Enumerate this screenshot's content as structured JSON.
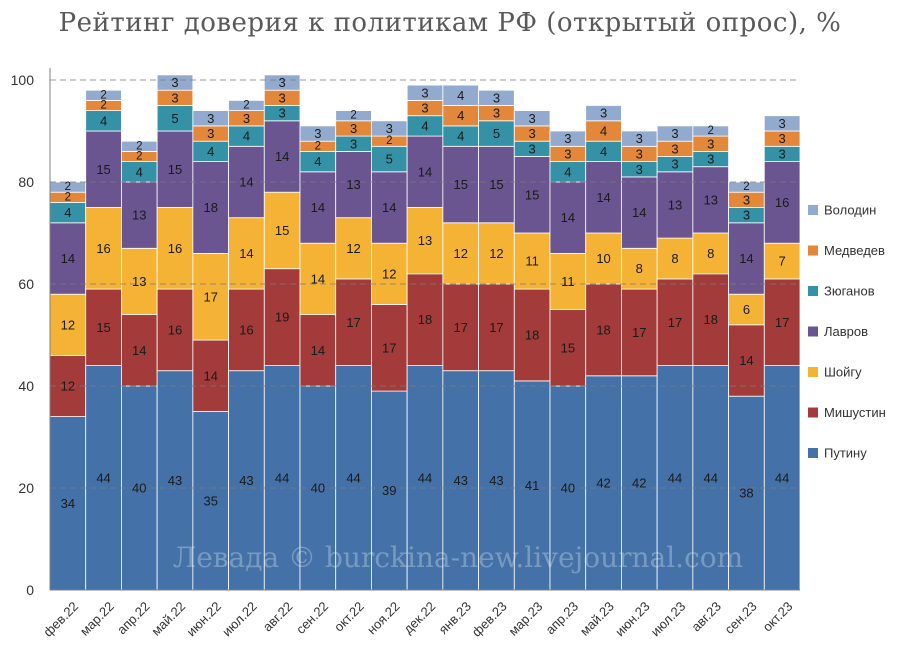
{
  "title": "Рейтинг доверия к политикам РФ (открытый опрос), %",
  "watermark": "Левада © burckina-new.livejournal.com",
  "chart_data": {
    "type": "bar",
    "stacked": true,
    "categories": [
      "фев.22",
      "мар.22",
      "апр.22",
      "май.22",
      "июн.22",
      "июл.22",
      "авг.22",
      "сен.22",
      "окт.22",
      "ноя.22",
      "дек.22",
      "янв.23",
      "фев.23",
      "мар.23",
      "апр.23",
      "май.23",
      "июн.23",
      "июл.23",
      "авг.23",
      "сен.23",
      "окт.23"
    ],
    "ylim": [
      0,
      100
    ],
    "yticks": [
      0,
      20,
      40,
      60,
      80,
      100
    ],
    "grid": true,
    "legend_position": "right",
    "series": [
      {
        "name": "Путину",
        "color": "#4472A8",
        "values": [
          34,
          44,
          40,
          43,
          35,
          43,
          44,
          40,
          44,
          39,
          44,
          43,
          43,
          41,
          40,
          42,
          42,
          44,
          44,
          38,
          44
        ]
      },
      {
        "name": "Мишустин",
        "color": "#A33B3B",
        "values": [
          12,
          15,
          14,
          16,
          14,
          16,
          19,
          14,
          17,
          17,
          18,
          17,
          17,
          18,
          15,
          18,
          17,
          17,
          18,
          14,
          17
        ]
      },
      {
        "name": "Шойгу",
        "color": "#F5B335",
        "values": [
          12,
          16,
          13,
          16,
          17,
          14,
          15,
          14,
          12,
          12,
          13,
          12,
          12,
          11,
          11,
          10,
          8,
          8,
          8,
          6,
          7
        ]
      },
      {
        "name": "Лавров",
        "color": "#6B5590",
        "values": [
          14,
          15,
          13,
          15,
          18,
          14,
          14,
          14,
          13,
          14,
          14,
          15,
          15,
          15,
          14,
          14,
          14,
          13,
          13,
          14,
          16
        ]
      },
      {
        "name": "Зюганов",
        "color": "#3592A6",
        "values": [
          4,
          4,
          4,
          5,
          4,
          4,
          3,
          4,
          3,
          5,
          4,
          4,
          5,
          3,
          4,
          4,
          3,
          3,
          3,
          3,
          3
        ]
      },
      {
        "name": "Медведев",
        "color": "#E3873A",
        "values": [
          2,
          2,
          2,
          3,
          3,
          3,
          3,
          2,
          3,
          2,
          3,
          4,
          3,
          3,
          3,
          4,
          3,
          3,
          3,
          3,
          3
        ]
      },
      {
        "name": "Володин",
        "color": "#93AACF",
        "values": [
          2,
          2,
          2,
          3,
          3,
          2,
          3,
          3,
          2,
          3,
          3,
          4,
          3,
          3,
          3,
          3,
          3,
          3,
          2,
          2,
          3
        ]
      }
    ]
  }
}
